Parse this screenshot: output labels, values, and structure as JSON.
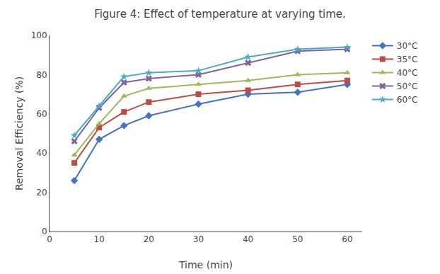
{
  "chart_data": {
    "type": "line",
    "title": "Figure 4: Effect of temperature at varying time.",
    "x_label": "Time (min)",
    "y_label": "Removal Efficiency (%)",
    "x": [
      5,
      10,
      15,
      20,
      30,
      40,
      50,
      60
    ],
    "xlim": [
      0,
      63
    ],
    "ylim": [
      0,
      100
    ],
    "xticks": [
      0,
      10,
      20,
      30,
      40,
      50,
      60
    ],
    "yticks": [
      0,
      20,
      40,
      60,
      80,
      100
    ],
    "grid": false,
    "legend": "right",
    "series": [
      {
        "name": "30°C",
        "color": "#4472C4",
        "marker": "diamond",
        "values": [
          26,
          47,
          54,
          59,
          65,
          70,
          71,
          75
        ]
      },
      {
        "name": "35°C",
        "color": "#BE4B48",
        "marker": "square",
        "values": [
          35,
          53,
          61,
          66,
          70,
          72,
          75,
          77
        ]
      },
      {
        "name": "40°C",
        "color": "#9BBB59",
        "marker": "triangle-up",
        "values": [
          39,
          55,
          69,
          73,
          75,
          77,
          80,
          81
        ]
      },
      {
        "name": "50°C",
        "color": "#8064A2",
        "marker": "x",
        "values": [
          46,
          63,
          76,
          78,
          80,
          86,
          92,
          93
        ]
      },
      {
        "name": "60°C",
        "color": "#4BACC6",
        "marker": "star",
        "values": [
          49,
          64,
          79,
          81,
          82,
          89,
          93,
          94
        ]
      }
    ]
  }
}
